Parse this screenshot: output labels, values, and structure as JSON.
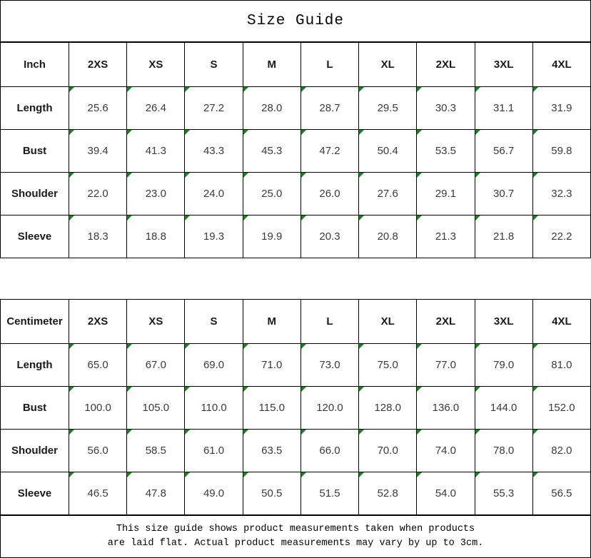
{
  "title": "Size Guide",
  "accent": {
    "marker_color": "#0f8a0f",
    "border_color": "#000000",
    "value_text_color": "#3a3a3a"
  },
  "sizes": [
    "2XS",
    "XS",
    "S",
    "M",
    "L",
    "XL",
    "2XL",
    "3XL",
    "4XL"
  ],
  "inch_table": {
    "unit_label": "Inch",
    "rows": [
      {
        "label": "Length",
        "values": [
          "25.6",
          "26.4",
          "27.2",
          "28.0",
          "28.7",
          "29.5",
          "30.3",
          "31.1",
          "31.9"
        ]
      },
      {
        "label": "Bust",
        "values": [
          "39.4",
          "41.3",
          "43.3",
          "45.3",
          "47.2",
          "50.4",
          "53.5",
          "56.7",
          "59.8"
        ]
      },
      {
        "label": "Shoulder",
        "values": [
          "22.0",
          "23.0",
          "24.0",
          "25.0",
          "26.0",
          "27.6",
          "29.1",
          "30.7",
          "32.3"
        ]
      },
      {
        "label": "Sleeve",
        "values": [
          "18.3",
          "18.8",
          "19.3",
          "19.9",
          "20.3",
          "20.8",
          "21.3",
          "21.8",
          "22.2"
        ]
      }
    ]
  },
  "cm_table": {
    "unit_label": "Centimeter",
    "rows": [
      {
        "label": "Length",
        "values": [
          "65.0",
          "67.0",
          "69.0",
          "71.0",
          "73.0",
          "75.0",
          "77.0",
          "79.0",
          "81.0"
        ]
      },
      {
        "label": "Bust",
        "values": [
          "100.0",
          "105.0",
          "110.0",
          "115.0",
          "120.0",
          "128.0",
          "136.0",
          "144.0",
          "152.0"
        ]
      },
      {
        "label": "Shoulder",
        "values": [
          "56.0",
          "58.5",
          "61.0",
          "63.5",
          "66.0",
          "70.0",
          "74.0",
          "78.0",
          "82.0"
        ]
      },
      {
        "label": "Sleeve",
        "values": [
          "46.5",
          "47.8",
          "49.0",
          "50.5",
          "51.5",
          "52.8",
          "54.0",
          "55.3",
          "56.5"
        ]
      }
    ]
  },
  "footer": {
    "line1": "This size guide shows product measurements taken when products",
    "line2": "are laid flat. Actual product measurements may vary by up to 3cm."
  }
}
